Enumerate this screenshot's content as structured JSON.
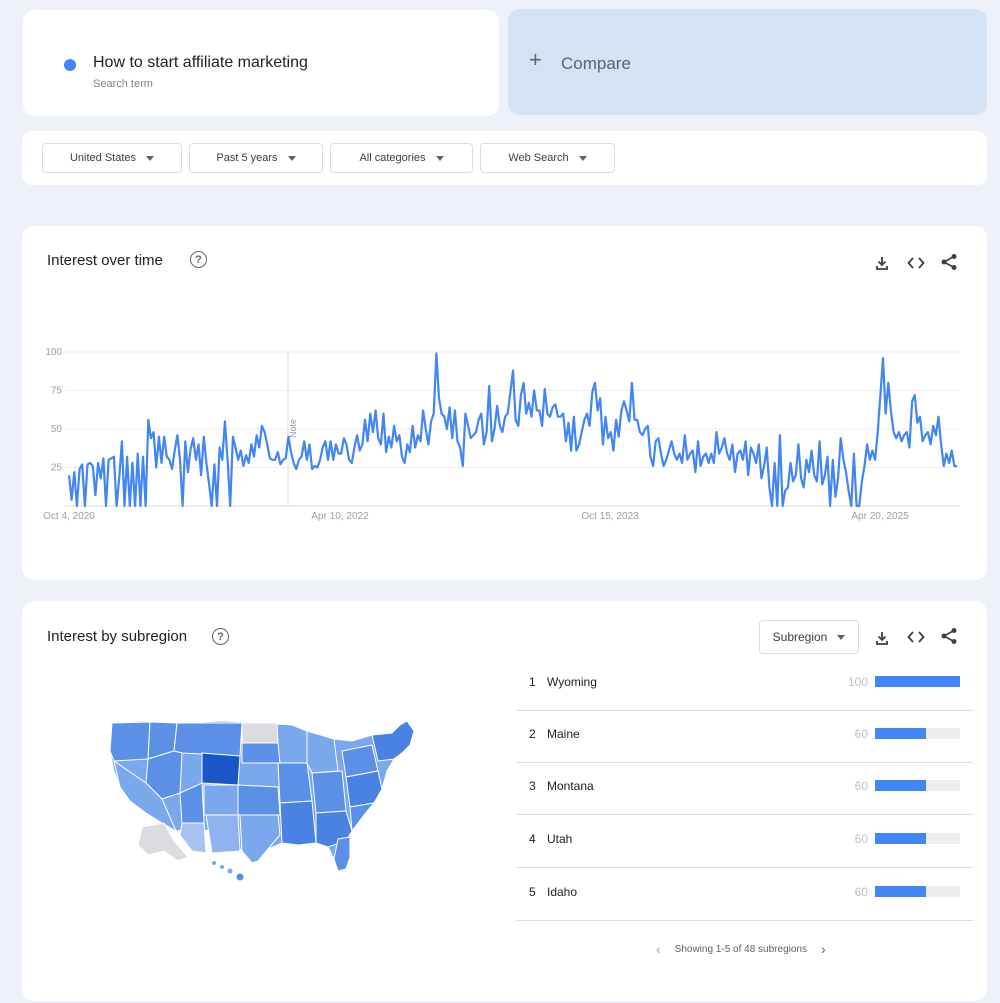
{
  "search_term": {
    "name": "How to start affiliate marketing",
    "subtitle": "Search term",
    "color": "#4285f4"
  },
  "compare": {
    "icon": "+",
    "label": "Compare"
  },
  "filters": [
    {
      "label": "United States"
    },
    {
      "label": "Past 5 years"
    },
    {
      "label": "All categories"
    },
    {
      "label": "Web Search"
    }
  ],
  "interest_over_time": {
    "title": "Interest over time",
    "help_icon": "?",
    "tools": [
      "download-icon",
      "embed-icon",
      "share-icon"
    ],
    "annotation": "Note"
  },
  "chart_data": {
    "type": "line",
    "title": "Interest over time",
    "x_tick_labels": [
      "Oct 4, 2020",
      "Apr 10, 2022",
      "Oct 15, 2023",
      "Apr 20, 2025"
    ],
    "y_ticks": [
      25,
      50,
      75,
      100
    ],
    "ylim": [
      0,
      100
    ],
    "grid": true,
    "series": [
      {
        "color": "#4285f4",
        "values": [
          20,
          4,
          22,
          0,
          24,
          27,
          0,
          27,
          28,
          26,
          7,
          28,
          18,
          31,
          0,
          30,
          31,
          32,
          0,
          18,
          42,
          0,
          32,
          0,
          28,
          0,
          34,
          0,
          32,
          0,
          56,
          44,
          48,
          25,
          45,
          28,
          45,
          32,
          30,
          24,
          36,
          46,
          30,
          0,
          42,
          22,
          37,
          44,
          30,
          40,
          20,
          45,
          28,
          14,
          0,
          27,
          0,
          38,
          30,
          55,
          30,
          0,
          45,
          38,
          30,
          36,
          26,
          33,
          28,
          40,
          32,
          46,
          38,
          52,
          48,
          40,
          31,
          30,
          30,
          35,
          27,
          30,
          31,
          45,
          35,
          28,
          24,
          30,
          32,
          42,
          30,
          40,
          24,
          26,
          25,
          30,
          38,
          42,
          30,
          42,
          30,
          40,
          34,
          34,
          44,
          40,
          30,
          28,
          38,
          46,
          36,
          40,
          56,
          42,
          60,
          48,
          62,
          44,
          40,
          60,
          35,
          45,
          38,
          52,
          42,
          46,
          32,
          28,
          40,
          35,
          52,
          38,
          46,
          42,
          62,
          50,
          40,
          55,
          60,
          99,
          70,
          60,
          58,
          50,
          64,
          44,
          62,
          42,
          38,
          26,
          60,
          52,
          44,
          46,
          48,
          56,
          60,
          40,
          48,
          78,
          42,
          50,
          65,
          52,
          48,
          58,
          60,
          74,
          88,
          56,
          52,
          72,
          80,
          60,
          67,
          58,
          75,
          62,
          62,
          52,
          76,
          60,
          58,
          64,
          66,
          58,
          58,
          60,
          42,
          54,
          36,
          58,
          36,
          40,
          48,
          56,
          60,
          52,
          74,
          80,
          62,
          70,
          40,
          58,
          44,
          48,
          36,
          56,
          45,
          62,
          68,
          62,
          55,
          80,
          56,
          56,
          48,
          46,
          50,
          52,
          32,
          26,
          42,
          44,
          34,
          26,
          30,
          36,
          42,
          34,
          30,
          34,
          28,
          46,
          30,
          34,
          36,
          22,
          42,
          26,
          32,
          34,
          28,
          34,
          28,
          48,
          34,
          38,
          44,
          34,
          30,
          40,
          22,
          34,
          36,
          30,
          42,
          20,
          38,
          34,
          28,
          40,
          18,
          26,
          38,
          12,
          0,
          28,
          0,
          46,
          0,
          10,
          12,
          28,
          16,
          20,
          40,
          18,
          12,
          30,
          22,
          36,
          20,
          16,
          42,
          14,
          20,
          32,
          0,
          30,
          6,
          18,
          44,
          30,
          22,
          10,
          0,
          34,
          0,
          0,
          16,
          26,
          40,
          30,
          36,
          30,
          48,
          72,
          96,
          60,
          80,
          62,
          48,
          44,
          48,
          42,
          46,
          48,
          38,
          68,
          72,
          54,
          58,
          42,
          46,
          48,
          40,
          52,
          46,
          58,
          40,
          26,
          34,
          28,
          36,
          26,
          26
        ]
      }
    ]
  },
  "interest_by_subregion": {
    "title": "Interest by subregion",
    "help_icon": "?",
    "dropdown_label": "Subregion",
    "tools": [
      "download-icon",
      "embed-icon",
      "share-icon"
    ],
    "rows": [
      {
        "rank": "1",
        "name": "Wyoming",
        "value": 100
      },
      {
        "rank": "2",
        "name": "Maine",
        "value": 60
      },
      {
        "rank": "3",
        "name": "Montana",
        "value": 60
      },
      {
        "rank": "4",
        "name": "Utah",
        "value": 60
      },
      {
        "rank": "5",
        "name": "Idaho",
        "value": 60
      }
    ],
    "pager_text": "Showing 1-5 of 48 subregions",
    "pager_prev": "‹",
    "pager_next": "›"
  }
}
